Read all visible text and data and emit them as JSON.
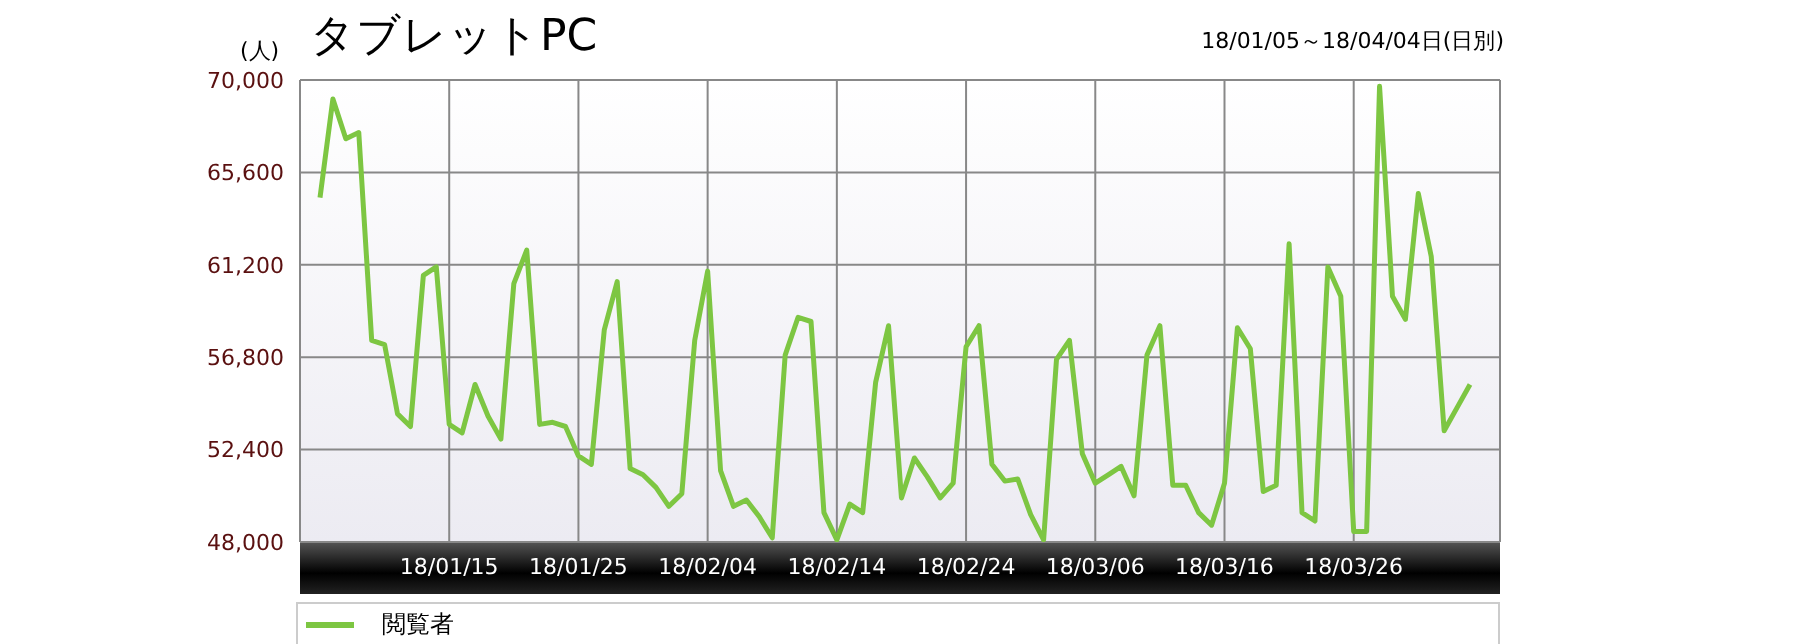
{
  "chart_data": {
    "type": "line",
    "title": "タブレットPC",
    "subtitle": "18/01/05～18/04/04日(日別)",
    "ylabel": "(人)",
    "categories": [
      null,
      null,
      null,
      null,
      null,
      null,
      null,
      null,
      null,
      null,
      "18/01/15",
      null,
      null,
      null,
      null,
      null,
      null,
      null,
      null,
      null,
      "18/01/25",
      null,
      null,
      null,
      null,
      null,
      null,
      null,
      null,
      null,
      "18/02/04",
      null,
      null,
      null,
      null,
      null,
      null,
      null,
      null,
      null,
      "18/02/14",
      null,
      null,
      null,
      null,
      null,
      null,
      null,
      null,
      null,
      "18/02/24",
      null,
      null,
      null,
      null,
      null,
      null,
      null,
      null,
      null,
      "18/03/06",
      null,
      null,
      null,
      null,
      null,
      null,
      null,
      null,
      null,
      "18/03/16",
      null,
      null,
      null,
      null,
      null,
      null,
      null,
      null,
      null,
      "18/03/26",
      null,
      null,
      null,
      null,
      null,
      null,
      null,
      null,
      null
    ],
    "series": [
      {
        "name": "閲覧者",
        "color": "#7dc642",
        "values": [
          64400,
          69100,
          67200,
          67500,
          57600,
          57400,
          54100,
          53500,
          60700,
          61100,
          53600,
          53200,
          55500,
          54000,
          52900,
          60300,
          61900,
          53600,
          53700,
          53500,
          52100,
          51700,
          58100,
          60400,
          51500,
          51200,
          50600,
          49700,
          50300,
          57600,
          60900,
          51400,
          49700,
          50000,
          49200,
          48200,
          56900,
          58700,
          58500,
          49400,
          48100,
          49800,
          49400,
          55600,
          58300,
          50100,
          52000,
          51100,
          50100,
          50800,
          57300,
          58300,
          51700,
          50900,
          51000,
          49300,
          48100,
          56700,
          57600,
          52200,
          50800,
          51200,
          51600,
          50200,
          56900,
          58300,
          50700,
          50700,
          49400,
          48800,
          50800,
          58200,
          57200,
          50400,
          50700,
          62200,
          49400,
          49000,
          61100,
          59700,
          48500,
          48500,
          69700,
          59700,
          58600,
          64600,
          61600,
          53300,
          54400,
          55500
        ]
      }
    ],
    "ylim": [
      48000,
      70000
    ],
    "yticks": [
      {
        "value": 48000,
        "label": "48,000"
      },
      {
        "value": 52400,
        "label": "52,400"
      },
      {
        "value": 56800,
        "label": "56,800"
      },
      {
        "value": 61200,
        "label": "61,200"
      },
      {
        "value": 65600,
        "label": "65,600"
      },
      {
        "value": 70000,
        "label": "70,000"
      }
    ],
    "grid": true,
    "legend": "bottom",
    "marker": "none",
    "line_style": "solid"
  }
}
